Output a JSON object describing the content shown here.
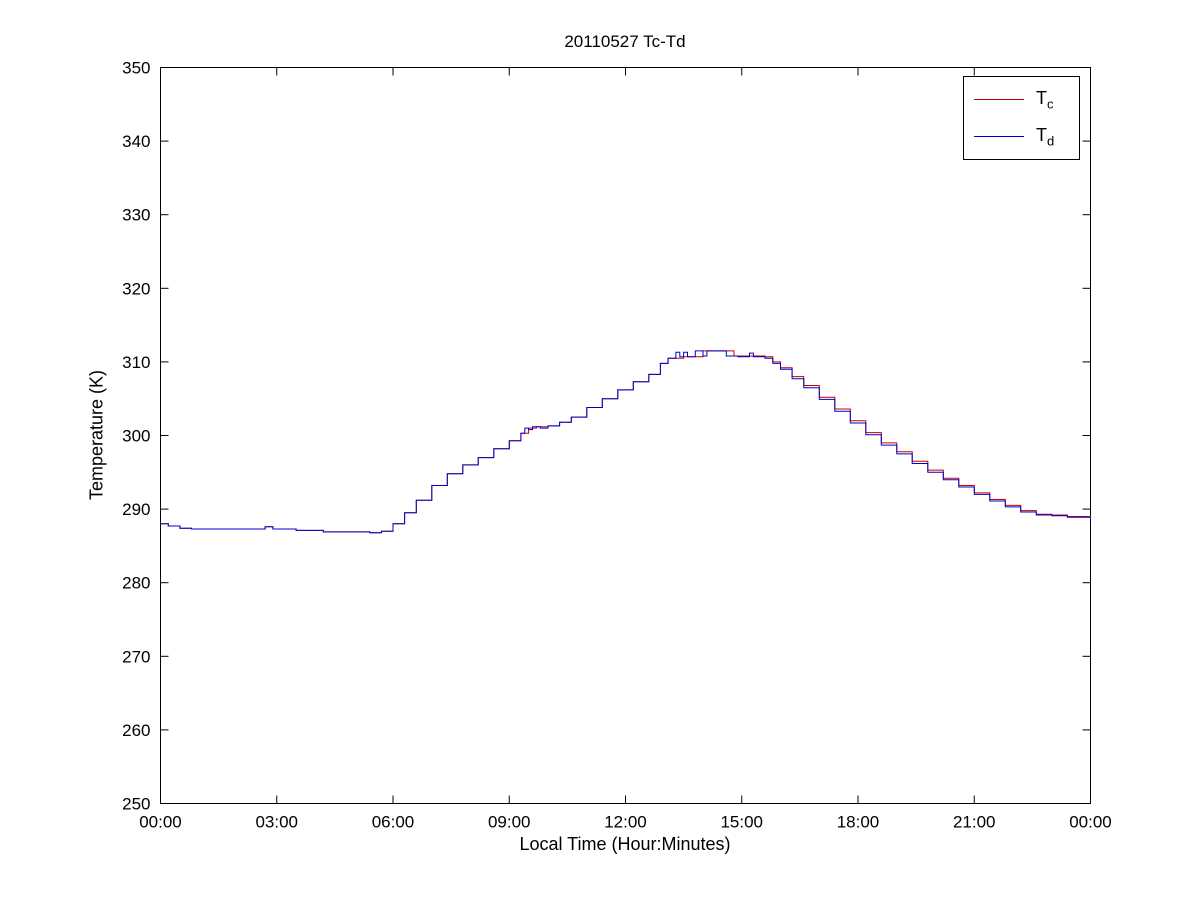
{
  "chart_data": {
    "type": "line",
    "title": "20110527 Tc-Td",
    "xlabel": "Local Time (Hour:Minutes)",
    "ylabel": "Temperature (K)",
    "xlim": [
      0,
      24
    ],
    "ylim": [
      250,
      350
    ],
    "grid": false,
    "legend_position": "top-right",
    "line_style": "stairs",
    "xticks": {
      "positions": [
        0,
        3,
        6,
        9,
        12,
        15,
        18,
        21,
        24
      ],
      "labels": [
        "00:00",
        "03:00",
        "06:00",
        "09:00",
        "12:00",
        "15:00",
        "18:00",
        "21:00",
        "00:00"
      ]
    },
    "yticks": {
      "positions": [
        250,
        260,
        270,
        280,
        290,
        300,
        310,
        320,
        330,
        340,
        350
      ],
      "labels": [
        "250",
        "260",
        "270",
        "280",
        "290",
        "300",
        "310",
        "320",
        "330",
        "340",
        "350"
      ]
    },
    "series": [
      {
        "id": "tc",
        "legend_main": "T",
        "legend_sub": "c",
        "color": "#cc0000",
        "points": [
          [
            0.0,
            288.0
          ],
          [
            0.2,
            287.7
          ],
          [
            0.5,
            287.4
          ],
          [
            0.8,
            287.3
          ],
          [
            2.6,
            287.3
          ],
          [
            2.7,
            287.6
          ],
          [
            2.9,
            287.3
          ],
          [
            3.5,
            287.1
          ],
          [
            4.2,
            286.9
          ],
          [
            5.4,
            286.8
          ],
          [
            5.7,
            287.0
          ],
          [
            6.0,
            288.0
          ],
          [
            6.3,
            289.5
          ],
          [
            6.6,
            291.2
          ],
          [
            7.0,
            293.2
          ],
          [
            7.4,
            294.8
          ],
          [
            7.8,
            296.0
          ],
          [
            8.2,
            297.0
          ],
          [
            8.6,
            298.2
          ],
          [
            9.0,
            299.3
          ],
          [
            9.3,
            300.3
          ],
          [
            9.5,
            301.0
          ],
          [
            9.7,
            301.2
          ],
          [
            10.0,
            301.3
          ],
          [
            10.3,
            301.8
          ],
          [
            10.6,
            302.5
          ],
          [
            11.0,
            303.8
          ],
          [
            11.4,
            305.0
          ],
          [
            11.8,
            306.2
          ],
          [
            12.2,
            307.3
          ],
          [
            12.6,
            308.3
          ],
          [
            12.9,
            309.8
          ],
          [
            13.1,
            310.5
          ],
          [
            13.5,
            310.7
          ],
          [
            14.0,
            311.5
          ],
          [
            14.6,
            311.5
          ],
          [
            14.8,
            310.8
          ],
          [
            15.3,
            310.8
          ],
          [
            15.6,
            310.7
          ],
          [
            15.8,
            310.0
          ],
          [
            16.0,
            309.2
          ],
          [
            16.3,
            308.0
          ],
          [
            16.6,
            306.8
          ],
          [
            17.0,
            305.2
          ],
          [
            17.4,
            303.6
          ],
          [
            17.8,
            302.0
          ],
          [
            18.2,
            300.4
          ],
          [
            18.6,
            299.0
          ],
          [
            19.0,
            297.8
          ],
          [
            19.4,
            296.5
          ],
          [
            19.8,
            295.3
          ],
          [
            20.2,
            294.2
          ],
          [
            20.6,
            293.2
          ],
          [
            21.0,
            292.2
          ],
          [
            21.4,
            291.3
          ],
          [
            21.8,
            290.5
          ],
          [
            22.2,
            289.8
          ],
          [
            22.6,
            289.3
          ],
          [
            23.0,
            289.2
          ],
          [
            23.4,
            289.0
          ],
          [
            24.0,
            288.6
          ]
        ]
      },
      {
        "id": "td",
        "legend_main": "T",
        "legend_sub": "d",
        "color": "#0000cc",
        "points": [
          [
            0.0,
            288.0
          ],
          [
            0.2,
            287.7
          ],
          [
            0.5,
            287.4
          ],
          [
            0.8,
            287.3
          ],
          [
            2.6,
            287.3
          ],
          [
            2.7,
            287.6
          ],
          [
            2.9,
            287.3
          ],
          [
            3.5,
            287.1
          ],
          [
            4.2,
            286.9
          ],
          [
            5.4,
            286.8
          ],
          [
            5.7,
            287.0
          ],
          [
            6.0,
            288.0
          ],
          [
            6.3,
            289.5
          ],
          [
            6.6,
            291.2
          ],
          [
            7.0,
            293.2
          ],
          [
            7.4,
            294.8
          ],
          [
            7.8,
            296.0
          ],
          [
            8.2,
            297.0
          ],
          [
            8.6,
            298.2
          ],
          [
            9.0,
            299.3
          ],
          [
            9.3,
            300.3
          ],
          [
            9.4,
            301.0
          ],
          [
            9.5,
            300.8
          ],
          [
            9.6,
            301.2
          ],
          [
            9.8,
            301.0
          ],
          [
            10.0,
            301.3
          ],
          [
            10.3,
            301.8
          ],
          [
            10.6,
            302.5
          ],
          [
            11.0,
            303.8
          ],
          [
            11.4,
            305.0
          ],
          [
            11.8,
            306.2
          ],
          [
            12.2,
            307.3
          ],
          [
            12.6,
            308.3
          ],
          [
            12.9,
            309.8
          ],
          [
            13.1,
            310.5
          ],
          [
            13.3,
            311.3
          ],
          [
            13.4,
            310.7
          ],
          [
            13.5,
            311.3
          ],
          [
            13.6,
            310.7
          ],
          [
            13.8,
            311.5
          ],
          [
            14.0,
            310.8
          ],
          [
            14.1,
            311.5
          ],
          [
            14.5,
            311.5
          ],
          [
            14.6,
            310.8
          ],
          [
            14.9,
            310.7
          ],
          [
            15.2,
            311.2
          ],
          [
            15.3,
            310.7
          ],
          [
            15.6,
            310.5
          ],
          [
            15.8,
            309.8
          ],
          [
            16.0,
            309.0
          ],
          [
            16.3,
            307.7
          ],
          [
            16.6,
            306.5
          ],
          [
            17.0,
            304.9
          ],
          [
            17.4,
            303.3
          ],
          [
            17.8,
            301.7
          ],
          [
            18.2,
            300.1
          ],
          [
            18.6,
            298.7
          ],
          [
            19.0,
            297.5
          ],
          [
            19.4,
            296.2
          ],
          [
            19.8,
            295.0
          ],
          [
            20.2,
            294.0
          ],
          [
            20.6,
            293.0
          ],
          [
            21.0,
            292.0
          ],
          [
            21.4,
            291.1
          ],
          [
            21.8,
            290.3
          ],
          [
            22.2,
            289.6
          ],
          [
            22.6,
            289.2
          ],
          [
            23.0,
            289.1
          ],
          [
            23.4,
            288.9
          ],
          [
            24.0,
            288.5
          ]
        ]
      }
    ]
  }
}
